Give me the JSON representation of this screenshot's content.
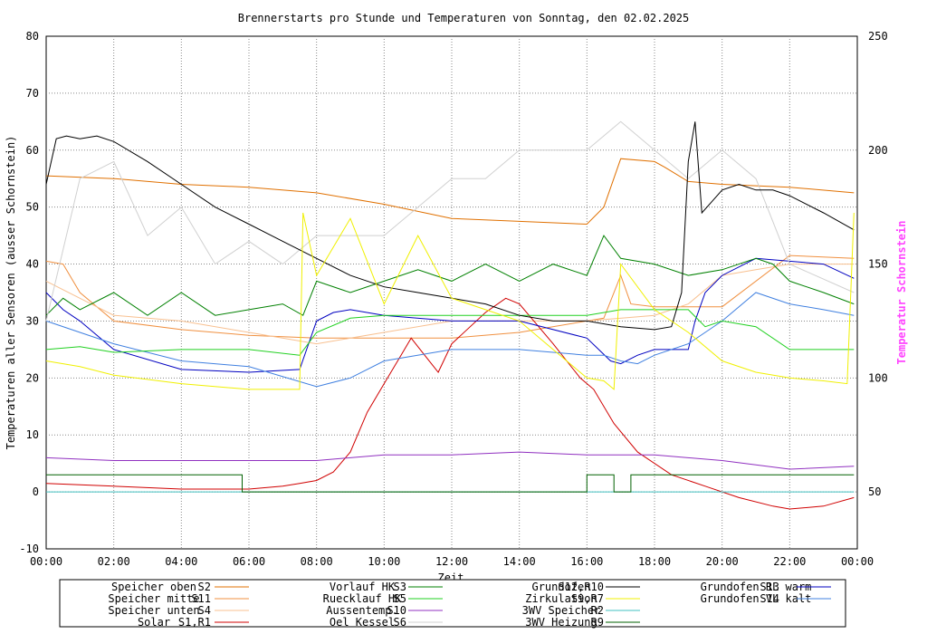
{
  "chart_data": {
    "type": "line",
    "title": "Brennerstarts pro Stunde und Temperaturen von Sonntag, den 02.02.2025",
    "xlabel": "Zeit",
    "ylabel": "Temperaturen aller Sensoren (ausser Schornstein)",
    "y2label": "Temperatur Schornstein",
    "y2label_color": "#ff44ff",
    "xlim": [
      0,
      24
    ],
    "ylim": [
      -10,
      80
    ],
    "y2lim": [
      25,
      250
    ],
    "grid": true,
    "x_ticks": [
      "00:00",
      "02:00",
      "04:00",
      "06:00",
      "08:00",
      "10:00",
      "12:00",
      "14:00",
      "16:00",
      "18:00",
      "20:00",
      "22:00",
      "00:00"
    ],
    "y_ticks": [
      -10,
      0,
      10,
      20,
      30,
      40,
      50,
      60,
      70,
      80
    ],
    "y2_ticks": [
      50,
      100,
      150,
      200,
      250
    ],
    "series": [
      {
        "name": "Speicher oben",
        "sensor": "S2",
        "color": "#e07000",
        "x": [
          0,
          2,
          4,
          6,
          8,
          10,
          12,
          14,
          16,
          16.5,
          17,
          18,
          18.3,
          19,
          20,
          22,
          23.9
        ],
        "y": [
          55.5,
          55,
          54,
          53.5,
          52.5,
          50.5,
          48,
          47.5,
          47,
          50,
          58.5,
          58,
          57,
          54.5,
          54,
          53.5,
          52.5
        ]
      },
      {
        "name": "Speicher mitte",
        "sensor": "S11",
        "color": "#f09040",
        "x": [
          0,
          0.5,
          1,
          2,
          4,
          6,
          8,
          10,
          12,
          14,
          16,
          16.5,
          17,
          17.3,
          18,
          20,
          22,
          23.9
        ],
        "y": [
          40.5,
          40,
          35,
          30,
          28.5,
          27.5,
          27,
          27,
          27,
          28,
          30,
          30.5,
          38,
          33,
          32.5,
          32.5,
          41.5,
          41
        ]
      },
      {
        "name": "Speicher unten",
        "sensor": "S4",
        "color": "#f8c090",
        "x": [
          0,
          1,
          2,
          4,
          6,
          8,
          10,
          12,
          14,
          16,
          18,
          19,
          20,
          21,
          22,
          23.9
        ],
        "y": [
          37,
          34,
          31,
          30,
          28,
          26,
          28,
          30,
          30,
          30,
          31,
          33,
          38,
          39,
          40,
          40
        ]
      },
      {
        "name": "Solar",
        "sensor": "S1,R1",
        "color": "#d00000",
        "x": [
          0,
          2,
          4,
          6,
          7,
          7.5,
          8,
          8.5,
          9,
          9.5,
          10,
          10.5,
          10.8,
          11.2,
          11.6,
          12,
          13,
          13.6,
          14,
          15,
          15.8,
          16.2,
          16.8,
          17.5,
          18.5,
          19.5,
          20.5,
          21.5,
          22,
          23,
          23.9
        ],
        "y": [
          1.5,
          1,
          0.5,
          0.5,
          1,
          1.5,
          2,
          3.5,
          7,
          14,
          19,
          24,
          27,
          24,
          21,
          26,
          31.5,
          34,
          33,
          26,
          20,
          18,
          12,
          7,
          3,
          1,
          -1,
          -2.5,
          -3,
          -2.5,
          -1
        ]
      },
      {
        "name": "Grundofen RL warm",
        "sensor": "S13",
        "color": "#0000c0",
        "x": [
          0,
          0.5,
          1,
          2,
          4,
          6,
          7.5,
          8,
          8.5,
          9,
          10,
          12,
          14,
          16,
          16.7,
          17,
          17.5,
          18,
          19,
          19.2,
          19.5,
          20,
          21,
          22,
          23,
          23.9
        ],
        "y": [
          35,
          32,
          30,
          25,
          21.5,
          21,
          21.5,
          30,
          31.5,
          32,
          31,
          30,
          30,
          27,
          23,
          22.5,
          24,
          25,
          25,
          30,
          35,
          38,
          41,
          40.5,
          40,
          37.5
        ]
      },
      {
        "name": "Grundofen VL kalt",
        "sensor": "S14",
        "color": "#4080e0",
        "x": [
          0,
          1,
          2,
          4,
          6,
          8,
          9,
          10,
          12,
          14,
          16,
          16.5,
          17,
          17.5,
          18,
          19,
          20,
          21,
          22,
          23,
          23.9
        ],
        "y": [
          30,
          28,
          26,
          23,
          22,
          18.5,
          20,
          23,
          25,
          25,
          24,
          24,
          23,
          22.5,
          24,
          26,
          30,
          35,
          33,
          32,
          31
        ]
      },
      {
        "name": "Vorlauf HK",
        "sensor": "S3",
        "color": "#008000",
        "x": [
          0,
          0.5,
          1,
          2,
          3,
          4,
          5,
          6,
          7,
          7.6,
          8,
          9,
          10,
          11,
          12,
          13,
          14,
          15,
          16,
          16.5,
          17,
          18,
          19,
          20,
          21,
          21.5,
          22,
          23,
          23.9
        ],
        "y": [
          31,
          34,
          32,
          35,
          31,
          35,
          31,
          32,
          33,
          31,
          37,
          35,
          37,
          39,
          37,
          40,
          37,
          40,
          38,
          45,
          41,
          40,
          38,
          39,
          41,
          40,
          37,
          35,
          33
        ]
      },
      {
        "name": "Ruecklauf HK",
        "sensor": "S5",
        "color": "#20d020",
        "x": [
          0,
          1,
          2,
          4,
          6,
          7.5,
          8,
          9,
          10,
          12,
          14,
          16,
          17,
          18,
          19,
          19.5,
          20,
          21,
          22,
          23,
          23.9
        ],
        "y": [
          25,
          25.5,
          24.5,
          25,
          25,
          24,
          28,
          30.5,
          31,
          31,
          31,
          31,
          32,
          32,
          32,
          29,
          30,
          29,
          25,
          25,
          25
        ]
      },
      {
        "name": "Aussentemp.",
        "sensor": "S10",
        "color": "#9030c0",
        "x": [
          0,
          2,
          4,
          6,
          8,
          10,
          12,
          14,
          16,
          18,
          20,
          22,
          23.9
        ],
        "y": [
          6,
          5.5,
          5.5,
          5.5,
          5.5,
          6.5,
          6.5,
          7,
          6.5,
          6.5,
          5.5,
          4,
          4.5
        ]
      },
      {
        "name": "Oel Kessel",
        "sensor": "S6",
        "color": "#d0d0d0",
        "x": [
          0,
          1,
          2,
          3,
          4,
          5,
          6,
          7,
          8,
          9,
          10,
          11,
          12,
          13,
          14,
          15,
          16,
          17,
          18,
          19,
          20,
          21,
          22,
          23.9
        ],
        "y": [
          30,
          55,
          58,
          45,
          50,
          40,
          44,
          40,
          45,
          45,
          45,
          50,
          55,
          55,
          60,
          60,
          60,
          65,
          60,
          55,
          60,
          55,
          40,
          35
        ]
      },
      {
        "name": "Grundofen",
        "sensor": "S12,R10",
        "color": "#000000",
        "x": [
          0,
          0.3,
          0.6,
          1,
          1.5,
          2,
          3,
          4,
          5,
          6,
          7,
          8,
          9,
          10,
          11,
          12,
          13,
          14,
          15,
          16,
          17,
          18,
          18.5,
          18.8,
          19,
          19.2,
          19.4,
          19.7,
          20,
          20.5,
          21,
          21.5,
          22,
          23,
          23.9
        ],
        "y": [
          54,
          62,
          62.5,
          62,
          62.5,
          61.5,
          58,
          54,
          50,
          47,
          44,
          41,
          38,
          36,
          35,
          34,
          33,
          31,
          30,
          30,
          29,
          28.5,
          29,
          35,
          58,
          65,
          49,
          51,
          53,
          54,
          53,
          53,
          52,
          49,
          46
        ]
      },
      {
        "name": "Zirkulation",
        "sensor": "S9,R7",
        "color": "#f0f000",
        "x": [
          0,
          1,
          2,
          4,
          6,
          7.5,
          7.6,
          8,
          9,
          10,
          11,
          12,
          13,
          14,
          15,
          16,
          16.5,
          16.8,
          17,
          18,
          19,
          20,
          21,
          22,
          23,
          23.7,
          23.9
        ],
        "y": [
          23,
          22,
          20.5,
          19,
          18,
          18,
          49,
          38,
          48,
          33,
          45,
          34,
          32,
          30,
          25,
          20,
          19.5,
          18,
          40,
          32,
          28,
          23,
          21,
          20,
          19.5,
          19,
          49
        ]
      },
      {
        "name": "3WV Speicher",
        "sensor": "R2",
        "color": "#40c0c0",
        "x": [
          0,
          23.9
        ],
        "y": [
          0,
          0
        ]
      },
      {
        "name": "3WV Heizung",
        "sensor": "R9",
        "color": "#006000",
        "x": [
          0,
          5.8,
          5.8,
          16,
          16,
          16.8,
          16.8,
          17.3,
          17.3,
          19.7,
          19.7,
          23.9
        ],
        "y": [
          3,
          3,
          0,
          0,
          3,
          3,
          0,
          0,
          3,
          3,
          3,
          3
        ]
      }
    ],
    "legend": [
      [
        "Speicher oben",
        "S2",
        "Vorlauf HK",
        "S3",
        "Grundofen",
        "S12,R10",
        "Grundofen RL warm",
        "S13"
      ],
      [
        "Speicher mitte",
        "S11",
        "Ruecklauf HK",
        "S5",
        "Zirkulation",
        "S9,R7",
        "Grundofen VL kalt",
        "S14"
      ],
      [
        "Speicher unten",
        "S4",
        "Aussentemp.",
        "S10",
        "3WV Speicher",
        "R2",
        "",
        ""
      ],
      [
        "Solar",
        "S1,R1",
        "Oel Kessel",
        "S6",
        "3WV Heizung",
        "R9",
        "",
        ""
      ]
    ]
  }
}
